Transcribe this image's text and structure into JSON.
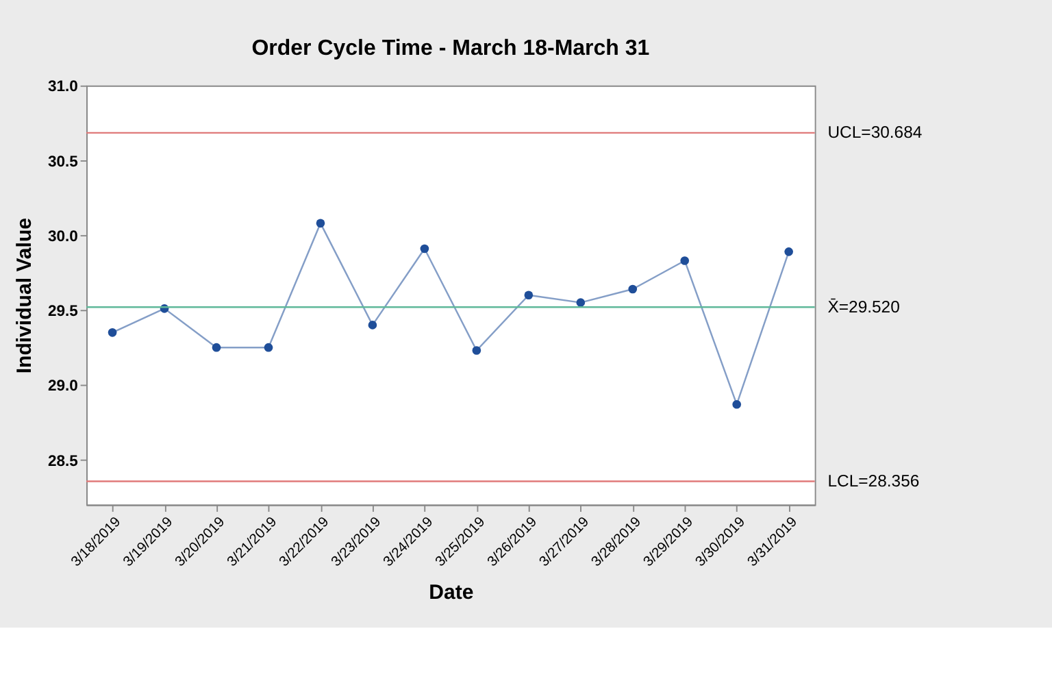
{
  "chart_data": {
    "type": "line",
    "title": "Order Cycle Time - March 18-March 31",
    "xlabel": "Date",
    "ylabel": "Individual Value",
    "categories": [
      "3/18/2019",
      "3/19/2019",
      "3/20/2019",
      "3/21/2019",
      "3/22/2019",
      "3/23/2019",
      "3/24/2019",
      "3/25/2019",
      "3/26/2019",
      "3/27/2019",
      "3/28/2019",
      "3/29/2019",
      "3/30/2019",
      "3/31/2019"
    ],
    "series": [
      {
        "color": "#1f4e99",
        "values": [
          29.35,
          29.51,
          29.25,
          29.25,
          30.08,
          29.4,
          29.91,
          29.23,
          29.6,
          29.55,
          29.64,
          29.83,
          28.87,
          29.89
        ]
      }
    ],
    "ylim": [
      28.2,
      31.0
    ],
    "yticks": [
      28.5,
      {
        "value": 29,
        "label": "29.0"
      },
      29.5,
      {
        "value": 30,
        "label": "30.0"
      },
      30.5,
      {
        "value": 31,
        "label": "31.0"
      }
    ],
    "ref_lines": [
      {
        "axis": "y",
        "value": 30.684,
        "label": "UCL=30.684",
        "color": "#e07a7a"
      },
      {
        "axis": "y",
        "value": 29.52,
        "label": "X̄=29.520",
        "color": "#5fb89a"
      },
      {
        "axis": "y",
        "value": 28.356,
        "label": "LCL=28.356",
        "color": "#e07a7a"
      }
    ],
    "marker": "circle",
    "line_style": "solid"
  }
}
